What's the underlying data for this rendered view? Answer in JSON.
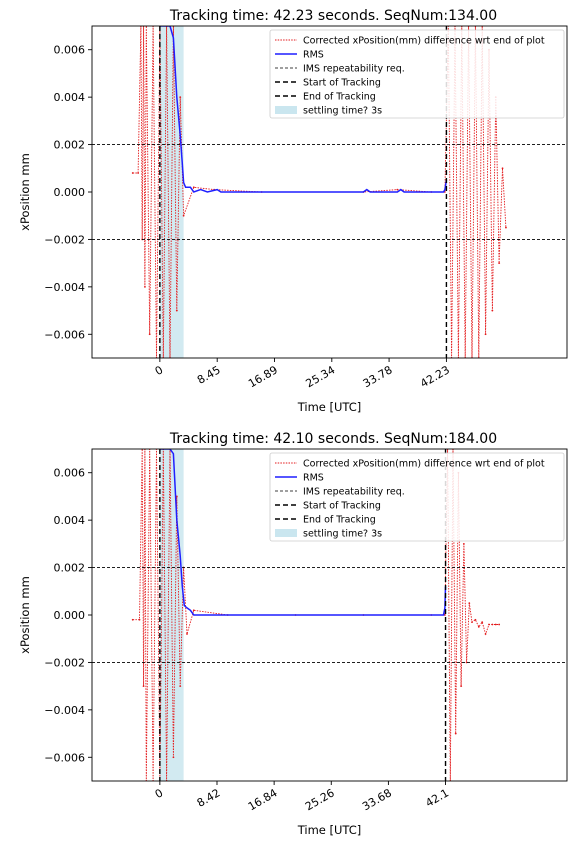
{
  "chart_data": [
    {
      "type": "line",
      "title": "Tracking time: 42.23 seconds. SeqNum:134.00",
      "xlabel": "Time [UTC]",
      "ylabel": "xPosition mm",
      "xlim": [
        -10,
        60
      ],
      "ylim": [
        -0.007,
        0.007
      ],
      "x_ticks": [
        0,
        8.45,
        16.89,
        25.34,
        33.78,
        42.23
      ],
      "x_tick_labels": [
        "0",
        "8.45",
        "16.89",
        "25.34",
        "33.78",
        "42.23"
      ],
      "y_ticks": [
        -0.006,
        -0.004,
        -0.002,
        0.0,
        0.002,
        0.004,
        0.006
      ],
      "y_tick_labels": [
        "−0.006",
        "−0.004",
        "−0.002",
        "0.000",
        "0.002",
        "0.004",
        "0.006"
      ],
      "legend": {
        "placement": "top-right",
        "entries": [
          "Corrected xPosition(mm) difference wrt end of plot",
          "RMS",
          "IMS repeatability req.",
          "Start of Tracking",
          "End of Tracking",
          "settling time? 3s"
        ]
      },
      "repeatability_req": [
        0.002,
        -0.002
      ],
      "start_of_tracking": 0,
      "end_of_tracking": 42.23,
      "settling_window": [
        0,
        3.5
      ],
      "rms": {
        "x": [
          0,
          0.5,
          1.0,
          1.5,
          2.0,
          2.5,
          3.0,
          3.3,
          3.5,
          3.8,
          4.5,
          5.0,
          6.0,
          7.0,
          8.45,
          9.0,
          10.0,
          20.0,
          30.0,
          30.5,
          31.0,
          35.0,
          35.5,
          36.0,
          41.8,
          42.0,
          42.23
        ],
        "y": [
          0.007,
          0.007,
          0.007,
          0.007,
          0.0065,
          0.004,
          0.0024,
          0.0012,
          0.0004,
          0.0002,
          0.0002,
          0.0,
          0.0001,
          0.0,
          0.0001,
          0.0,
          0.0,
          0.0,
          0.0,
          0.0001,
          0.0,
          0.0,
          0.0001,
          0.0,
          0.0,
          0.0001,
          0.0005
        ]
      },
      "diff_samples": {
        "x": [
          -4.0,
          -3.2,
          -2.8,
          -2.6,
          -2.4,
          -2.2,
          -2.0,
          -1.5,
          -1.0,
          -0.5,
          0.0,
          0.5,
          1.0,
          1.5,
          2.0,
          2.5,
          3.0,
          3.5,
          5.0,
          8.0,
          15.0,
          30.0,
          35.0,
          40.0,
          42.0,
          42.5,
          43.0,
          43.5,
          44.0,
          44.5,
          45.0,
          45.5,
          46.0,
          46.5,
          47.0,
          47.5,
          48.0,
          48.5,
          49.0,
          49.5,
          50.0,
          50.5,
          51.0
        ],
        "y": [
          0.0008,
          0.0008,
          0.007,
          -0.002,
          0.007,
          -0.004,
          0.007,
          -0.006,
          0.007,
          -0.007,
          0.007,
          -0.007,
          0.007,
          -0.007,
          0.007,
          -0.005,
          0.004,
          -0.001,
          0.0002,
          0.0001,
          0.0,
          0.0,
          0.0001,
          0.0,
          0.0,
          0.007,
          -0.007,
          0.007,
          -0.007,
          0.007,
          -0.007,
          0.007,
          -0.007,
          0.007,
          -0.007,
          0.007,
          -0.006,
          0.006,
          -0.005,
          0.004,
          -0.003,
          0.001,
          -0.0015
        ]
      }
    },
    {
      "type": "line",
      "title": "Tracking time: 42.10 seconds. SeqNum:184.00",
      "xlabel": "Time [UTC]",
      "ylabel": "xPosition mm",
      "xlim": [
        -10,
        60
      ],
      "ylim": [
        -0.007,
        0.007
      ],
      "x_ticks": [
        0,
        8.42,
        16.84,
        25.26,
        33.68,
        42.1
      ],
      "x_tick_labels": [
        "0",
        "8.42",
        "16.84",
        "25.26",
        "33.68",
        "42.1"
      ],
      "y_ticks": [
        -0.006,
        -0.004,
        -0.002,
        0.0,
        0.002,
        0.004,
        0.006
      ],
      "y_tick_labels": [
        "−0.006",
        "−0.004",
        "−0.002",
        "0.000",
        "0.002",
        "0.004",
        "0.006"
      ],
      "legend": {
        "placement": "top-right",
        "entries": [
          "Corrected xPosition(mm) difference wrt end of plot",
          "RMS",
          "IMS repeatability req.",
          "Start of Tracking",
          "End of Tracking",
          "settling time? 3s"
        ]
      },
      "repeatability_req": [
        0.002,
        -0.002
      ],
      "start_of_tracking": 0,
      "end_of_tracking": 42.1,
      "settling_window": [
        0,
        3.5
      ],
      "rms": {
        "x": [
          0,
          0.5,
          1.0,
          1.5,
          2.0,
          2.5,
          3.0,
          3.3,
          3.6,
          4.0,
          4.5,
          5.0,
          10.0,
          20.0,
          30.0,
          40.0,
          41.8,
          42.0,
          42.1
        ],
        "y": [
          0.007,
          0.007,
          0.007,
          0.007,
          0.0068,
          0.004,
          0.0025,
          0.0012,
          0.0004,
          0.0003,
          0.0002,
          0.0,
          0.0,
          0.0,
          0.0,
          0.0,
          0.0,
          0.0003,
          0.0012
        ]
      },
      "diff_samples": {
        "x": [
          -4.0,
          -3.0,
          -2.6,
          -2.4,
          -2.2,
          -2.0,
          -1.5,
          -1.0,
          -0.5,
          0.0,
          0.5,
          1.0,
          1.5,
          2.0,
          2.5,
          3.0,
          3.5,
          4.0,
          5.0,
          10.0,
          20.0,
          30.0,
          40.0,
          42.0,
          42.4,
          42.8,
          43.2,
          43.6,
          44.0,
          44.4,
          44.8,
          45.2,
          45.6,
          46.0,
          46.5,
          47.0,
          47.5,
          48.0,
          48.5,
          49.0,
          49.5,
          50.0
        ],
        "y": [
          -0.0002,
          -0.0002,
          0.007,
          -0.003,
          0.007,
          -0.007,
          0.007,
          -0.007,
          0.007,
          -0.007,
          0.007,
          -0.007,
          0.007,
          -0.006,
          0.005,
          -0.003,
          0.002,
          -0.0008,
          0.0002,
          0.0,
          0.0,
          0.0,
          0.0,
          0.0,
          0.007,
          -0.007,
          0.007,
          -0.005,
          0.006,
          -0.003,
          0.003,
          -0.002,
          0.0005,
          -0.0003,
          -0.0002,
          -0.0005,
          -0.0003,
          -0.0008,
          -0.0004,
          -0.0004,
          -0.0004,
          -0.0004
        ]
      }
    }
  ]
}
